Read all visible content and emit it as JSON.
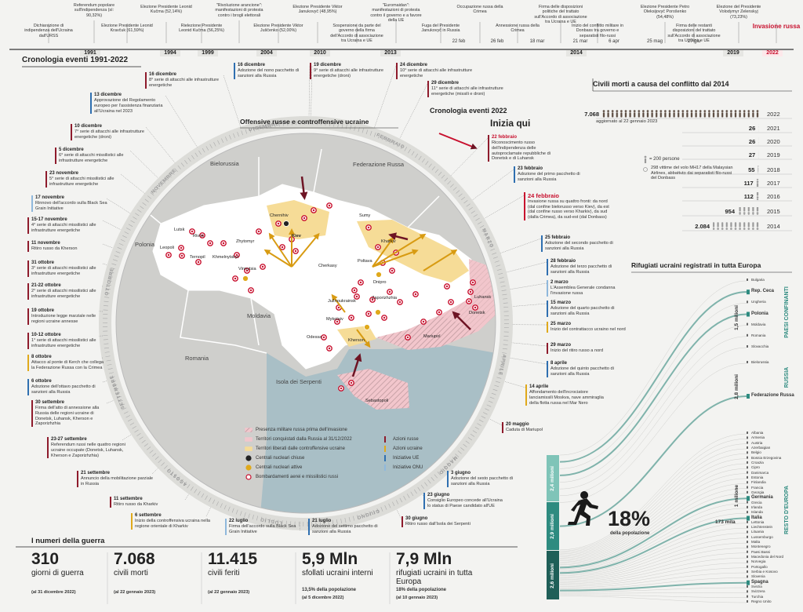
{
  "header": {
    "title": "Cronologia eventi 1991-2022",
    "events": [
      "Dichiarazione di indipendenza dell'Ucraina dall'URSS",
      "Referendum popolare sull'indipendenza (sì: 90,32%)",
      "Elezione Presidente Leonid Kravčuk (61,59%)",
      "Elezione Presidente Leonid Kučma (52,14%)",
      "Rielezione Presidente Leonid Kučma (56,25%)",
      "\"Rivoluzione arancione\": manifestazioni di protesta contro i brogli elettorali",
      "Elezione Presidente Viktor Juščenko (52,00%)",
      "Elezione Presidente Viktor Janukovyč (48,95%)",
      "Sospensione da parte del governo della firma dell'Accordo di associazione tra Ucraina e UE",
      "\"Euromaidan\": manifestazioni di protesta contro il governo e a favore della UE",
      "Fuga del Presidente Janukovyč in Russia",
      "Occupazione russa della Crimea",
      "Annessione russa della Crimea",
      "Firma delle disposizioni politiche del trattato sull'Accordo di associazione tra Ucraina e UE",
      "Inizio del conflitto militare in Donbass tra governo e separatisti filo-russi",
      "Elezione Presidente Petro Oleksijovyč Porošenko (54,48%)",
      "Firma delle restanti disposizioni del trattato sull'Accordo di associazione tra Ucraina e UE",
      "Elezione del Presidente Volodymyr Zelenskyj (73,23%)",
      "Invasione russa"
    ],
    "years": [
      "1991",
      "1994",
      "1999",
      "2004",
      "2010",
      "2013",
      "2014",
      "2019",
      "2022"
    ],
    "dates": [
      "22 feb",
      "26 feb",
      "18 mar",
      "21 mar",
      "6 apr",
      "25 mag",
      "27 giu"
    ]
  },
  "circle": {
    "title": "Cronologia eventi 2022",
    "map_title": "Offensive russe e controffensive ucraine",
    "start": "Inizia qui",
    "months": [
      "FEBBRAIO",
      "MARZO",
      "APRILE",
      "MAGGIO",
      "GIUGNO",
      "LUGLIO",
      "AGOSTO",
      "SETTEMBRE",
      "OTTOBRE",
      "NOVEMBRE",
      "DICEMBRE"
    ],
    "events": [
      {
        "date": "22 febbraio",
        "text": "Riconoscimento russo dell'indipendenza delle autoproclamate repubbliche di Donetsk e di Luhansk",
        "color": "#8e1b2c"
      },
      {
        "date": "23 febbraio",
        "text": "Adozione del primo pacchetto di sanzioni alla Russia",
        "color": "#2f6fb0"
      },
      {
        "date": "24 febbraio",
        "text": "Invasione russa su quattro fronti: da nord (dal confine bielorusso verso Kiev), da est (dal confine russo verso Kharkiv), da sud (dalla Crimea), da sud-est (dal Donbass)",
        "color": "#c8102e"
      },
      {
        "date": "25 febbraio",
        "text": "Adozione del secondo pacchetto di sanzioni alla Russia",
        "color": "#2f6fb0"
      },
      {
        "date": "28 febbraio",
        "text": "Adozione del terzo pacchetto di sanzioni alla Russia",
        "color": "#2f6fb0"
      },
      {
        "date": "2 marzo",
        "text": "L'Assemblea Generale condanna l'invasione russa",
        "color": "#8fb8dc"
      },
      {
        "date": "15 marzo",
        "text": "Adozione del quarto pacchetto di sanzioni alla Russia",
        "color": "#2f6fb0"
      },
      {
        "date": "25 marzo",
        "text": "Inizio del contrattacco ucraino nel nord",
        "color": "#e0a91b"
      },
      {
        "date": "29 marzo",
        "text": "Inizio del ritiro russo a nord",
        "color": "#8e1b2c"
      },
      {
        "date": "8 aprile",
        "text": "Adozione del quinto pacchetto di sanzioni alla Russia",
        "color": "#2f6fb0"
      },
      {
        "date": "14 aprile",
        "text": "Affondamento dell'incrociatore lanciamissili Moskva, nave ammiraglia della flotta russa nel Mar Nero",
        "color": "#e0a91b"
      },
      {
        "date": "20 maggio",
        "text": "Caduta di Mariupol",
        "color": "#8e1b2c"
      },
      {
        "date": "3 giugno",
        "text": "Adozione del sesto pacchetto di sanzioni alla Russia",
        "color": "#2f6fb0"
      },
      {
        "date": "23 giugno",
        "text": "Consiglio Europeo concede all'Ucraina lo status di Paese candidato all'UE",
        "color": "#2f6fb0"
      },
      {
        "date": "30 giugno",
        "text": "Ritiro russo dall'Isola dei Serpenti",
        "color": "#8e1b2c"
      },
      {
        "date": "21 luglio",
        "text": "Adozione del settimo pacchetto di sanzioni alla Russia",
        "color": "#2f6fb0"
      },
      {
        "date": "22 luglio",
        "text": "Firma dell'accordo sulla Black Sea Grain Initiative",
        "color": "#8fb8dc"
      },
      {
        "date": "6 settembre",
        "text": "Inizio della controffensiva ucraina nella regione orientale di Kharkiv",
        "color": "#e0a91b"
      },
      {
        "date": "11 settembre",
        "text": "Ritiro russo da Kharkiv",
        "color": "#8e1b2c"
      },
      {
        "date": "21 settembre",
        "text": "Annuncio della mobilitazione parziale in Russia",
        "color": "#8e1b2c"
      },
      {
        "date": "23-27 settembre",
        "text": "Referendum russi nelle quattro regioni ucraine occupate (Donetsk, Luhansk, Kherson e Zaporizhzhia)",
        "color": "#8e1b2c"
      },
      {
        "date": "30 settembre",
        "text": "Firma dell'atto di annessione alla Russia delle regioni ucraine di Donetsk, Luhansk, Kherson e Zaporizhzhia",
        "color": "#8e1b2c"
      },
      {
        "date": "6 ottobre",
        "text": "Adozione dell'ottavo pacchetto di sanzioni alla Russia",
        "color": "#2f6fb0"
      },
      {
        "date": "8 ottobre",
        "text": "Attacco al ponte di Kerch che collega la Federazione Russa con la Crimea",
        "color": "#e0a91b"
      },
      {
        "date": "10-12 ottobre",
        "text": "1° serie di attacchi missilistici alle infrastrutture energetiche",
        "color": "#8e1b2c"
      },
      {
        "date": "19 ottobre",
        "text": "Introduzione legge marziale nelle regioni ucraine annesse",
        "color": "#8e1b2c"
      },
      {
        "date": "21-22 ottobre",
        "text": "2° serie di attacchi missilistici alle infrastrutture energetiche",
        "color": "#8e1b2c"
      },
      {
        "date": "31 ottobre",
        "text": "3° serie di attacchi missilistici alle infrastrutture energetiche",
        "color": "#8e1b2c"
      },
      {
        "date": "11 novembre",
        "text": "Ritiro russo da Kherson",
        "color": "#8e1b2c"
      },
      {
        "date": "15-17 novembre",
        "text": "4° serie di attacchi missilistici alle infrastrutture energetiche",
        "color": "#8e1b2c"
      },
      {
        "date": "17 novembre",
        "text": "Rinnovo dell'accordo sulla Black Sea Grain Initiative",
        "color": "#8fb8dc"
      },
      {
        "date": "23 novembre",
        "text": "5° serie di attacchi missilistici alle infrastrutture energetiche",
        "color": "#8e1b2c"
      },
      {
        "date": "5 dicembre",
        "text": "6° serie di attacchi missilistici alle infrastrutture energetiche",
        "color": "#8e1b2c"
      },
      {
        "date": "10 dicembre",
        "text": "7° serie di attacchi alle infrastrutture energetiche (droni)",
        "color": "#8e1b2c"
      },
      {
        "date": "13 dicembre",
        "text": "Approvazione del Regolamento europeo per l'assistenza finanziaria all'Ucraina nel 2023",
        "color": "#2f6fb0"
      },
      {
        "date": "16 dicembre",
        "text": "8° serie di attacchi alle infrastrutture energetiche",
        "color": "#8e1b2c"
      },
      {
        "date": "16 dicembre",
        "text": "Adozione del nono pacchetto di sanzioni alla Russia",
        "color": "#2f6fb0"
      },
      {
        "date": "19 dicembre",
        "text": "9° serie di attacchi alle infrastrutture energetiche (droni)",
        "color": "#8e1b2c"
      },
      {
        "date": "24 dicembre",
        "text": "10° serie di attacchi alle infrastrutture energetiche",
        "color": "#8e1b2c"
      },
      {
        "date": "29 dicembre",
        "text": "11° serie di attacchi alle infrastrutture energetiche (missili e droni)",
        "color": "#8e1b2c"
      }
    ]
  },
  "map": {
    "labels": [
      "Bielorussia",
      "Federazione Russa",
      "Polonia",
      "Moldavia",
      "Romania",
      "Isola dei Serpenti",
      "Kiev",
      "Lutsk",
      "Rivne",
      "Leopoli",
      "Ternopil",
      "Khmelnytskyi",
      "Vinnytsia",
      "Zhytomyr",
      "Chernihiv",
      "Sumy",
      "Kharkiv",
      "Poltava",
      "Cherkasy",
      "Dnipro",
      "Zaporizhzhia",
      "Južnoukrainsk",
      "Mykolaiv",
      "Kherson",
      "Odessa",
      "Mariupol",
      "Luhansk",
      "Donetsk",
      "Sebastopoli"
    ],
    "legend": [
      {
        "label": "Presenza militare russa prima dell'invasione",
        "color": "#c9a3a8"
      },
      {
        "label": "Territori conquistati dalla Russia al 31/12/2022",
        "color": "#f2c6cc"
      },
      {
        "label": "Territori liberati dalle controffensive ucraine",
        "color": "#f6dc97"
      },
      {
        "label": "Centrali nucleari chiuse",
        "color": "#222222"
      },
      {
        "label": "Centrali nucleari attive",
        "color": "#e0a91b"
      },
      {
        "label": "Bombardamenti aerei e missilistici russi",
        "color": "#c8102e"
      },
      {
        "label": "Azioni russe",
        "color": "#8e1b2c"
      },
      {
        "label": "Azioni ucraine",
        "color": "#e0a91b"
      },
      {
        "label": "Iniziative UE",
        "color": "#2f6fb0"
      },
      {
        "label": "Iniziative ONU",
        "color": "#8fb8dc"
      }
    ]
  },
  "chart_data": {
    "type": "bar",
    "title": "Civili morti a causa del conflitto dal 2014",
    "note": "aggiornato al 22 gennaio 2023",
    "unit_legend": "= 200 persone",
    "annotation": "298 vittime del volo MH17 della Malaysian Airlines, abbattuto dai separatisti filo-russi del Donbass",
    "categories": [
      "2022",
      "2021",
      "2020",
      "2019",
      "2018",
      "2017",
      "2016",
      "2015",
      "2014"
    ],
    "values": [
      7068,
      26,
      26,
      27,
      55,
      117,
      112,
      954,
      2084
    ],
    "value_labels": [
      "7.068",
      "26",
      "26",
      "27",
      "55",
      "117",
      "112",
      "954",
      "2.084"
    ],
    "color": "#9a9a9a"
  },
  "refugees": {
    "title": "Rifugiati ucraini registrati in tutta Europa",
    "groups": [
      "PAESI CONFINANTI",
      "RUSSIA",
      "RESTO D'EUROPA"
    ],
    "group_totals": [
      "1,5 milioni",
      "2,8 milioni",
      "1 milione",
      "173 mila"
    ],
    "countries": [
      [
        {
          "name": "Bulgaria"
        },
        {
          "name": "Rep. Ceca",
          "bold": true
        },
        {
          "name": "Ungheria"
        },
        {
          "name": "Polonia",
          "bold": true
        },
        {
          "name": "Moldavia"
        },
        {
          "name": "Romania"
        },
        {
          "name": "Slovacchia"
        }
      ],
      [
        {
          "name": "Bielorussia"
        },
        {
          "name": "Federazione Russa",
          "bold": true
        }
      ],
      [
        {
          "name": "Albania"
        },
        {
          "name": "Armenia"
        },
        {
          "name": "Austria"
        },
        {
          "name": "Azerbaigian"
        },
        {
          "name": "Belgio"
        },
        {
          "name": "Bosnia Erzegovina"
        },
        {
          "name": "Croazia"
        },
        {
          "name": "Cipro"
        },
        {
          "name": "Danimarca"
        },
        {
          "name": "Estonia"
        },
        {
          "name": "Finlandia"
        },
        {
          "name": "Francia"
        },
        {
          "name": "Georgia"
        },
        {
          "name": "Germania",
          "bold": true
        },
        {
          "name": "Grecia"
        },
        {
          "name": "Irlanda"
        },
        {
          "name": "Islanda"
        },
        {
          "name": "Italia",
          "bold": true
        },
        {
          "name": "Lettonia"
        },
        {
          "name": "Liechtenstein"
        },
        {
          "name": "Lituania"
        },
        {
          "name": "Lussemburgo"
        },
        {
          "name": "Malta"
        },
        {
          "name": "Montenegro"
        },
        {
          "name": "Paesi Bassi"
        },
        {
          "name": "Macedonia del Nord"
        },
        {
          "name": "Norvegia"
        },
        {
          "name": "Portogallo"
        },
        {
          "name": "Serbia e Kosovo"
        },
        {
          "name": "Slovenia"
        },
        {
          "name": "Spagna",
          "bold": true
        },
        {
          "name": "Svezia"
        },
        {
          "name": "Svizzera"
        },
        {
          "name": "Turchia"
        },
        {
          "name": "Regno Unito"
        }
      ]
    ],
    "bars": [
      "2,4 milioni",
      "2,9 milioni",
      "2,6 milioni"
    ],
    "percent": "18%",
    "percent_note": "della popolazione"
  },
  "numbers": {
    "title": "I numeri della guerra",
    "items": [
      {
        "value": "310",
        "label": "giorni di guerra",
        "date": "(al 31 dicembre 2022)"
      },
      {
        "value": "7.068",
        "label": "civili morti",
        "date": "(al 22 gennaio 2023)"
      },
      {
        "value": "11.415",
        "label": "civili feriti",
        "date": "(al 22 gennaio 2023)"
      },
      {
        "value": "5,9 Mln",
        "label": "sfollati ucraini interni",
        "share": "13,5% della popolazione",
        "date": "(al 5 dicembre 2022)"
      },
      {
        "value": "7,9 Mln",
        "label": "rifugiati ucraini in tutta Europa",
        "share": "18% della popolazione",
        "date": "(al 10 gennaio 2023)"
      }
    ]
  }
}
